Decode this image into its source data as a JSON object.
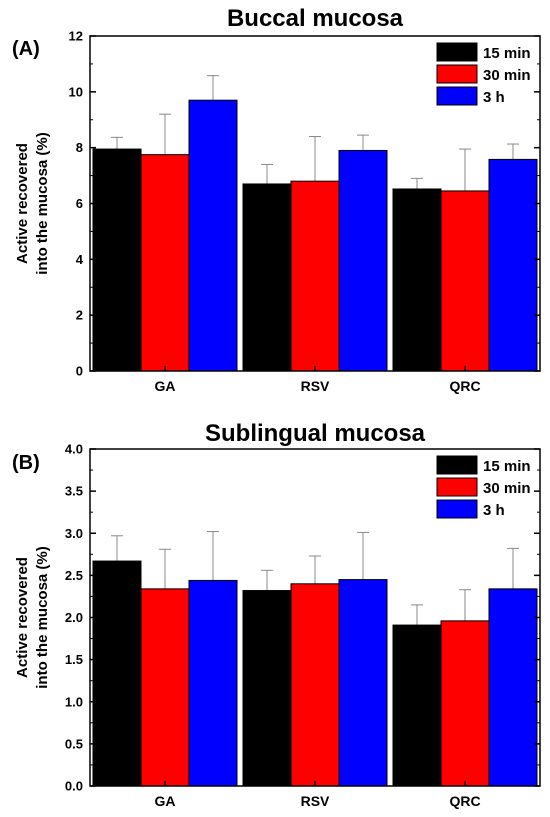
{
  "colors": {
    "15 min": "#000000",
    "30 min": "#ff0000",
    "3 h": "#0000ff"
  },
  "chart_data": [
    {
      "type": "bar",
      "panel_label": "(A)",
      "title": "Buccal mucosa",
      "ylabel_line1": "Active recovered",
      "ylabel_line2": "into the mucosa (%)",
      "xlabel": "",
      "categories": [
        "GA",
        "RSV",
        "QRC"
      ],
      "ylim": [
        0,
        12
      ],
      "yticks": [
        0,
        2,
        4,
        6,
        8,
        10,
        12
      ],
      "ytick_labels": [
        "0",
        "2",
        "4",
        "6",
        "8",
        "10",
        "12"
      ],
      "legend_position": "top-right",
      "series": [
        {
          "name": "15 min",
          "values": [
            7.95,
            6.7,
            6.52
          ],
          "errors": [
            0.42,
            0.7,
            0.38
          ]
        },
        {
          "name": "30 min",
          "values": [
            7.75,
            6.8,
            6.45
          ],
          "errors": [
            1.45,
            1.6,
            1.5
          ]
        },
        {
          "name": "3 h",
          "values": [
            9.7,
            7.9,
            7.58
          ],
          "errors": [
            0.88,
            0.55,
            0.55
          ]
        }
      ]
    },
    {
      "type": "bar",
      "panel_label": "(B)",
      "title": "Sublingual mucosa",
      "ylabel_line1": "Active recovered",
      "ylabel_line2": "into the mucosa (%)",
      "xlabel": "",
      "categories": [
        "GA",
        "RSV",
        "QRC"
      ],
      "ylim": [
        0,
        4
      ],
      "yticks": [
        0,
        0.5,
        1,
        1.5,
        2,
        2.5,
        3,
        3.5,
        4
      ],
      "ytick_labels": [
        "0.0",
        "0.5",
        "1.0",
        "1.5",
        "2.0",
        "2.5",
        "3.0",
        "3.5",
        "4.0"
      ],
      "legend_position": "top-right",
      "series": [
        {
          "name": "15 min",
          "values": [
            2.67,
            2.32,
            1.91
          ],
          "errors": [
            0.3,
            0.24,
            0.24
          ]
        },
        {
          "name": "30 min",
          "values": [
            2.34,
            2.4,
            1.96
          ],
          "errors": [
            0.47,
            0.33,
            0.37
          ]
        },
        {
          "name": "3 h",
          "values": [
            2.44,
            2.45,
            2.34
          ],
          "errors": [
            0.58,
            0.56,
            0.48
          ]
        }
      ]
    }
  ]
}
